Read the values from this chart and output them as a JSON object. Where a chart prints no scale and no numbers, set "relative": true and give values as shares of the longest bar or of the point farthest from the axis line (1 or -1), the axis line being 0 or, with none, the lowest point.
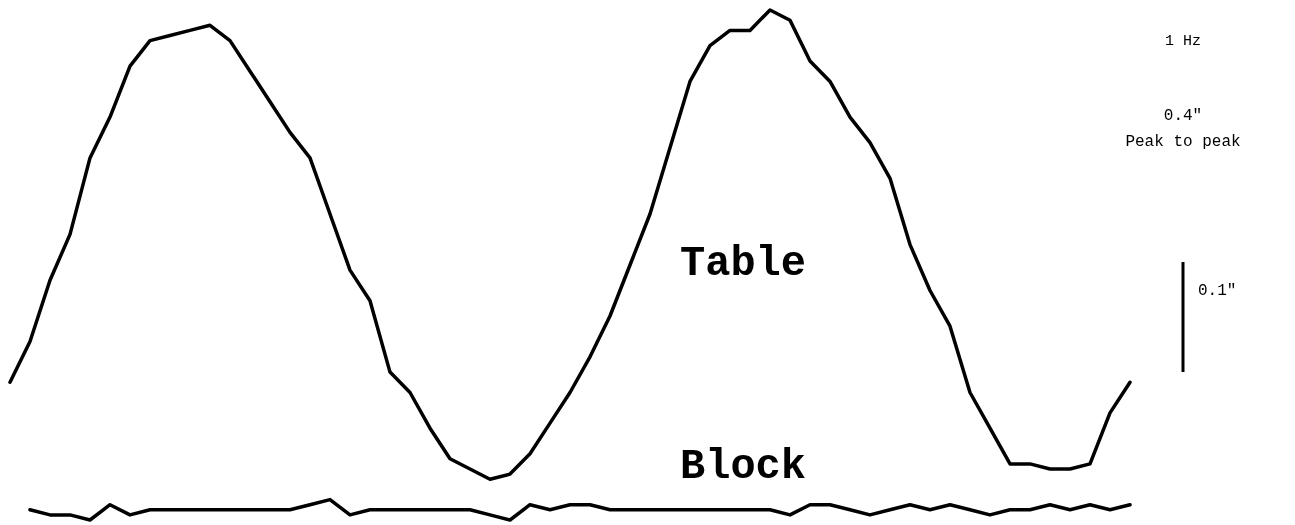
{
  "chart_data": {
    "type": "line",
    "relative": true,
    "marker": "none",
    "line_style": "solid",
    "categories": [
      null,
      null,
      null,
      null,
      null,
      null,
      null,
      null,
      null,
      null,
      null,
      null,
      null,
      null,
      null,
      null,
      null,
      null,
      null,
      null,
      null,
      null,
      null,
      null,
      null,
      null,
      null,
      null,
      null,
      null,
      null,
      null,
      null,
      null,
      null,
      null,
      null,
      null,
      null,
      null,
      null,
      null,
      null,
      null,
      null,
      null,
      null,
      null,
      null,
      null,
      null,
      null,
      null,
      null,
      null,
      null,
      null
    ],
    "series": [
      {
        "name": "Table",
        "color": "#000000",
        "values": [
          0.27,
          0.35,
          0.47,
          0.56,
          0.71,
          0.79,
          0.89,
          0.94,
          0.95,
          0.96,
          0.97,
          0.94,
          0.88,
          0.82,
          0.76,
          0.71,
          0.6,
          0.49,
          0.43,
          0.29,
          0.25,
          0.18,
          0.12,
          0.1,
          0.08,
          0.09,
          0.13,
          0.19,
          0.25,
          0.32,
          0.4,
          0.5,
          0.6,
          0.73,
          0.86,
          0.93,
          0.96,
          0.96,
          1.0,
          0.98,
          0.9,
          0.86,
          0.79,
          0.74,
          0.67,
          0.54,
          0.45,
          0.38,
          0.25,
          0.18,
          0.11,
          0.11,
          0.1,
          0.1,
          0.11,
          0.21,
          0.27
        ]
      },
      {
        "name": "Block",
        "color": "#000000",
        "values": [
          null,
          0.02,
          0.01,
          0.01,
          0.0,
          0.03,
          0.01,
          0.02,
          0.02,
          0.02,
          0.02,
          0.02,
          0.02,
          0.02,
          0.02,
          0.03,
          0.04,
          0.01,
          0.02,
          0.02,
          0.02,
          0.02,
          0.02,
          0.02,
          0.01,
          0.0,
          0.03,
          0.02,
          0.03,
          0.03,
          0.02,
          0.02,
          0.02,
          0.02,
          0.02,
          0.02,
          0.02,
          0.02,
          0.02,
          0.01,
          0.03,
          0.03,
          0.02,
          0.01,
          0.02,
          0.03,
          0.02,
          0.03,
          0.02,
          0.01,
          0.02,
          0.02,
          0.03,
          0.02,
          0.03,
          0.02,
          0.03
        ]
      }
    ],
    "annotations": [
      "1 Hz",
      "0.4\"\nPeak to peak",
      "0.1\""
    ]
  }
}
